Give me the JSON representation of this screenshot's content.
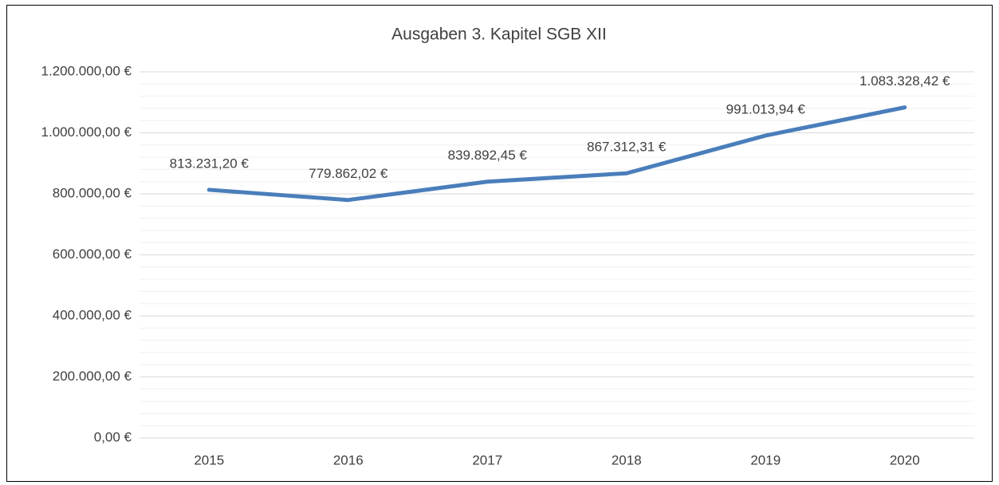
{
  "chart_data": {
    "type": "line",
    "title": "Ausgaben 3. Kapitel SGB XII",
    "categories": [
      "2015",
      "2016",
      "2017",
      "2018",
      "2019",
      "2020"
    ],
    "series": [
      {
        "name": "Ausgaben",
        "color": "#4a7ebb",
        "values": [
          813231.2,
          779862.02,
          839892.45,
          867312.31,
          991013.94,
          1083328.42
        ],
        "value_labels": [
          "813.231,20 €",
          "779.862,02 €",
          "839.892,45 €",
          "867.312,31 €",
          "991.013,94 €",
          "1.083.328,42 €"
        ]
      }
    ],
    "ylim": [
      0,
      1200000
    ],
    "yticks": [
      {
        "value": 0,
        "label": "0,00 €"
      },
      {
        "value": 200000,
        "label": "200.000,00 €"
      },
      {
        "value": 400000,
        "label": "400.000,00 €"
      },
      {
        "value": 600000,
        "label": "600.000,00 €"
      },
      {
        "value": 800000,
        "label": "800.000,00 €"
      },
      {
        "value": 1000000,
        "label": "1.000.000,00 €"
      },
      {
        "value": 1200000,
        "label": "1.200.000,00 €"
      }
    ],
    "minor_yticks": [
      40000,
      80000,
      120000,
      160000,
      240000,
      280000,
      320000,
      360000,
      440000,
      480000,
      520000,
      560000,
      640000,
      680000,
      720000,
      760000,
      840000,
      880000,
      920000,
      960000,
      1040000,
      1080000,
      1120000,
      1160000
    ],
    "grid": true
  }
}
